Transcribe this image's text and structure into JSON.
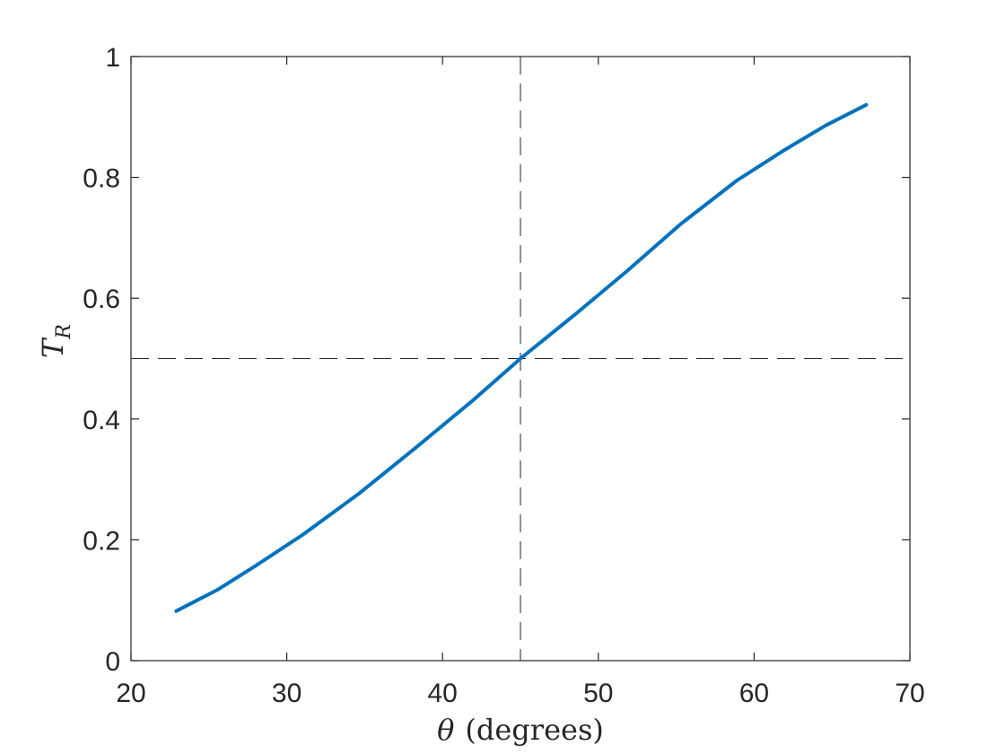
{
  "chart_data": {
    "type": "line",
    "xlabel": {
      "symbol": "θ",
      "text": "(degrees)"
    },
    "ylabel": {
      "symbol": "T",
      "subscript": "R"
    },
    "xlim": [
      20,
      70
    ],
    "ylim": [
      0,
      1
    ],
    "xticks": [
      20,
      30,
      40,
      50,
      60,
      70
    ],
    "yticks": [
      0,
      0.2,
      0.4,
      0.6,
      0.8,
      1
    ],
    "xtick_labels": [
      "20",
      "30",
      "40",
      "50",
      "60",
      "70"
    ],
    "ytick_labels": [
      "0",
      "0.2",
      "0.4",
      "0.6",
      "0.8",
      "1"
    ],
    "grid": false,
    "series": [
      {
        "color": "#0072BD",
        "x": [
          22.9,
          25.6,
          28.0,
          31.0,
          34.6,
          38.4,
          42.0,
          45.0,
          48.6,
          51.8,
          55.3,
          58.9,
          62.0,
          64.6,
          67.2
        ],
        "y": [
          0.082,
          0.118,
          0.157,
          0.208,
          0.276,
          0.355,
          0.432,
          0.5,
          0.575,
          0.644,
          0.723,
          0.795,
          0.846,
          0.886,
          0.92
        ]
      }
    ],
    "reference_lines": [
      {
        "orientation": "vertical",
        "x": 45,
        "color": "#262626",
        "style": "dashed"
      },
      {
        "orientation": "horizontal",
        "y": 0.5,
        "color": "#262626",
        "style": "dashed"
      }
    ]
  }
}
